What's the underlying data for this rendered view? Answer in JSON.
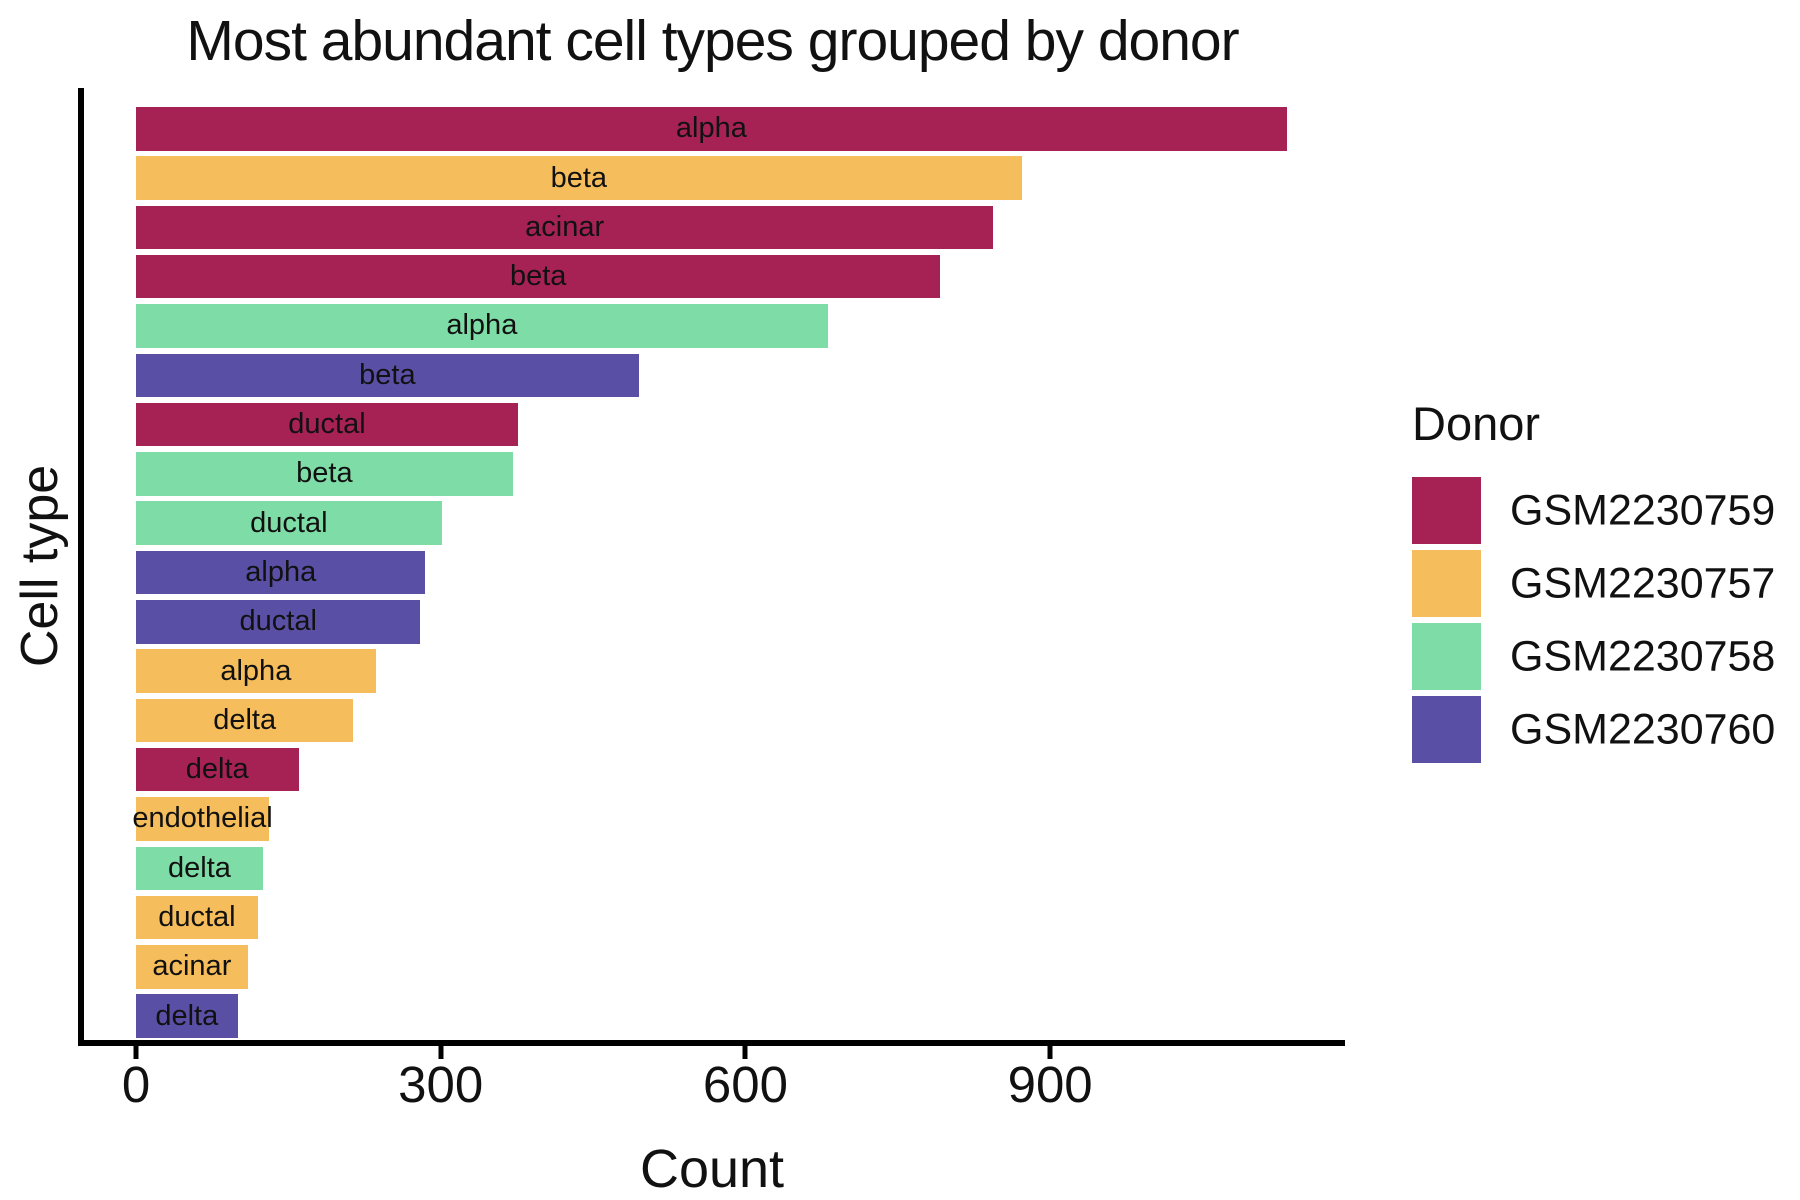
{
  "title": "Most abundant cell types grouped by donor",
  "x_axis": {
    "label": "Count",
    "ticks": [
      0,
      300,
      600,
      900
    ]
  },
  "y_axis": {
    "label": "Cell type"
  },
  "legend": {
    "title": "Donor",
    "entries": [
      {
        "label": "GSM2230759",
        "color": "#A62154"
      },
      {
        "label": "GSM2230757",
        "color": "#F5BD5B"
      },
      {
        "label": "GSM2230758",
        "color": "#7EDCA6"
      },
      {
        "label": "GSM2230760",
        "color": "#5950A5"
      }
    ]
  },
  "colors": {
    "background": "#FFFFFF",
    "axis": "#000000",
    "text": "#111111"
  },
  "chart_data": {
    "type": "bar",
    "orientation": "horizontal",
    "title": "Most abundant cell types grouped by donor",
    "xlabel": "Count",
    "ylabel": "Cell type",
    "xlim": [
      0,
      1190
    ],
    "x_ticks": [
      0,
      300,
      600,
      900
    ],
    "grid": false,
    "legend_title": "Donor",
    "legend_position": "right",
    "bar_text_labels": "cell type name centered inside each bar",
    "bars": [
      {
        "cell_type": "alpha",
        "donor": "GSM2230759",
        "count": 1133
      },
      {
        "cell_type": "beta",
        "donor": "GSM2230757",
        "count": 872
      },
      {
        "cell_type": "acinar",
        "donor": "GSM2230759",
        "count": 844
      },
      {
        "cell_type": "beta",
        "donor": "GSM2230759",
        "count": 792
      },
      {
        "cell_type": "alpha",
        "donor": "GSM2230758",
        "count": 681
      },
      {
        "cell_type": "beta",
        "donor": "GSM2230760",
        "count": 495
      },
      {
        "cell_type": "ductal",
        "donor": "GSM2230759",
        "count": 376
      },
      {
        "cell_type": "beta",
        "donor": "GSM2230758",
        "count": 371
      },
      {
        "cell_type": "ductal",
        "donor": "GSM2230758",
        "count": 301
      },
      {
        "cell_type": "alpha",
        "donor": "GSM2230760",
        "count": 285
      },
      {
        "cell_type": "ductal",
        "donor": "GSM2230760",
        "count": 280
      },
      {
        "cell_type": "alpha",
        "donor": "GSM2230757",
        "count": 236
      },
      {
        "cell_type": "delta",
        "donor": "GSM2230757",
        "count": 214
      },
      {
        "cell_type": "delta",
        "donor": "GSM2230759",
        "count": 160
      },
      {
        "cell_type": "endothelial",
        "donor": "GSM2230757",
        "count": 131
      },
      {
        "cell_type": "delta",
        "donor": "GSM2230758",
        "count": 125
      },
      {
        "cell_type": "ductal",
        "donor": "GSM2230757",
        "count": 120
      },
      {
        "cell_type": "acinar",
        "donor": "GSM2230757",
        "count": 110
      },
      {
        "cell_type": "delta",
        "donor": "GSM2230760",
        "count": 100
      }
    ]
  }
}
